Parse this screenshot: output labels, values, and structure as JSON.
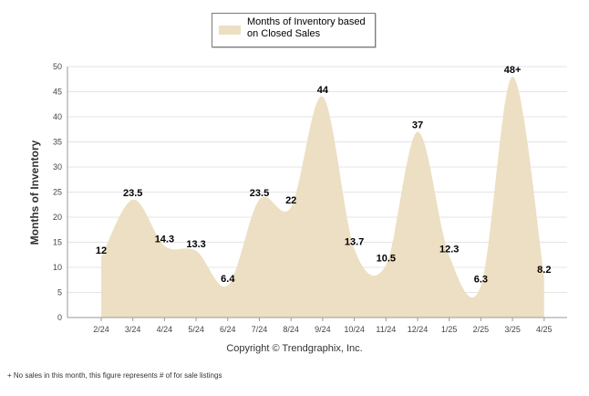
{
  "chart_data": {
    "type": "area",
    "legend": {
      "label": "Months of Inventory based on Closed Sales",
      "position": "top-center"
    },
    "categories": [
      "2/24",
      "3/24",
      "4/24",
      "5/24",
      "6/24",
      "7/24",
      "8/24",
      "9/24",
      "10/24",
      "11/24",
      "12/24",
      "1/25",
      "2/25",
      "3/25",
      "4/25"
    ],
    "series": [
      {
        "name": "Months of Inventory based on Closed Sales",
        "values": [
          12,
          23.5,
          14.3,
          13.3,
          6.4,
          23.5,
          22,
          44,
          13.7,
          10.5,
          37,
          12.3,
          6.3,
          48,
          8.2
        ],
        "labels": [
          "12",
          "23.5",
          "14.3",
          "13.3",
          "6.4",
          "23.5",
          "22",
          "44",
          "13.7",
          "10.5",
          "37",
          "12.3",
          "6.3",
          "48+",
          "8.2"
        ],
        "color": "#eddfc3"
      }
    ],
    "ylabel": "Months of Inventory",
    "ylim": [
      0,
      50
    ],
    "yticks": [
      0,
      5,
      10,
      15,
      20,
      25,
      30,
      35,
      40,
      45,
      50
    ],
    "grid": true
  },
  "footer": {
    "copyright": "Copyright © Trendgraphix, Inc.",
    "footnote": "+  No sales in this month, this figure represents # of for sale listings"
  }
}
